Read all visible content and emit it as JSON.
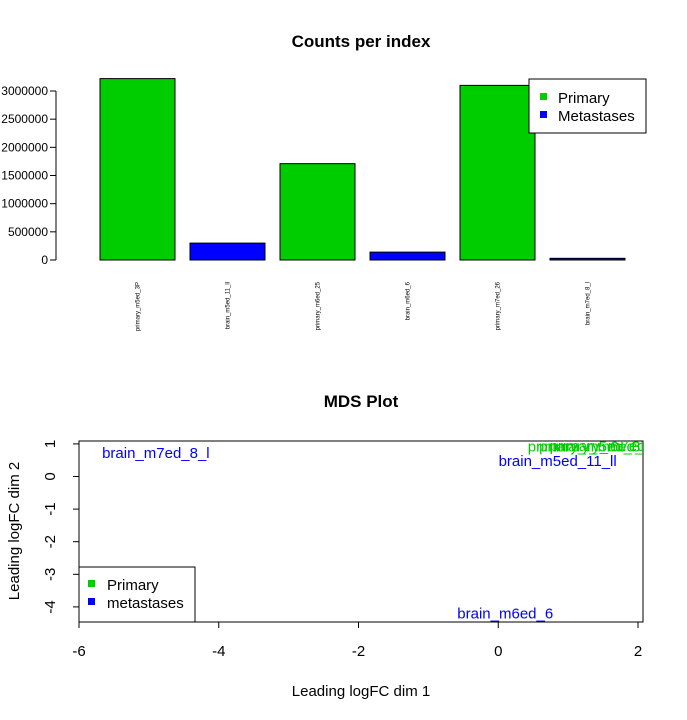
{
  "chart_data": [
    {
      "type": "bar",
      "title": "Counts per index",
      "categories": [
        "primary_m5ed_3P",
        "brain_m5ed_11_ll",
        "primary_m6ed_25",
        "brain_m6ed_6",
        "primary_m7ed_26",
        "brain_m7ed_8_l"
      ],
      "values": [
        3220000,
        300000,
        1710000,
        140000,
        3100000,
        30000
      ],
      "colors": [
        "#00cd00",
        "#0000ff",
        "#00cd00",
        "#0000ff",
        "#00cd00",
        "#0000ff"
      ],
      "yticks": [
        0,
        500000,
        1000000,
        1500000,
        2000000,
        2500000,
        3000000
      ],
      "ytick_labels": [
        "0",
        "500000",
        "1000000",
        "1500000",
        "2000000",
        "2500000",
        "3000000"
      ],
      "legend": [
        {
          "label": "Primary",
          "color": "#00cd00"
        },
        {
          "label": "Metastases",
          "color": "#0000ff"
        }
      ],
      "legend_position": "top-right"
    },
    {
      "type": "scatter",
      "title": "MDS Plot",
      "xlabel": "Leading logFC dim 1",
      "ylabel": "Leading logFC dim 2",
      "xlim": [
        -6,
        2
      ],
      "ylim": [
        -4.4,
        1.1
      ],
      "xticks": [
        -6,
        -4,
        -2,
        0,
        2
      ],
      "yticks": [
        -4,
        -3,
        -2,
        -1,
        0,
        1
      ],
      "points": [
        {
          "label": "brain_m7ed_8_l",
          "x": -4.9,
          "y": 0.72,
          "color": "#0000ff"
        },
        {
          "label": "brain_m5ed_11_ll",
          "x": 0.85,
          "y": 0.47,
          "color": "#0000ff"
        },
        {
          "label": "brain_m6ed_6",
          "x": 0.1,
          "y": -4.2,
          "color": "#0000ff"
        },
        {
          "label": "primary_m5ed_3P",
          "x": 1.3,
          "y": 0.92,
          "color": "#00cd00"
        },
        {
          "label": "primary_m6ed_25",
          "x": 1.45,
          "y": 0.92,
          "color": "#00cd00"
        },
        {
          "label": "primary_m7ed_26",
          "x": 1.6,
          "y": 0.93,
          "color": "#00cd00"
        }
      ],
      "legend": [
        {
          "label": "Primary",
          "color": "#00cd00"
        },
        {
          "label": "metastases",
          "color": "#0000ff"
        }
      ],
      "legend_position": "bottom-left"
    }
  ]
}
